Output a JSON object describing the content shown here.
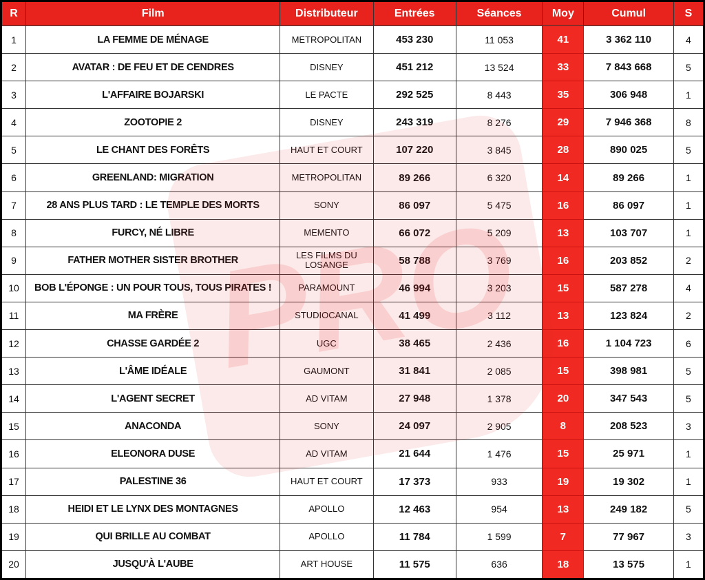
{
  "table": {
    "header": [
      "R",
      "Film",
      "Distributeur",
      "Entrées",
      "Séances",
      "Moy",
      "Cumul",
      "S"
    ],
    "rows": [
      [
        "1",
        "LA FEMME DE MÉNAGE",
        "METROPOLITAN",
        "453 230",
        "11 053",
        "41",
        "3 362 110",
        "4"
      ],
      [
        "2",
        "AVATAR : DE FEU ET DE CENDRES",
        "DISNEY",
        "451 212",
        "13 524",
        "33",
        "7 843 668",
        "5"
      ],
      [
        "3",
        "L'AFFAIRE BOJARSKI",
        "LE PACTE",
        "292 525",
        "8 443",
        "35",
        "306 948",
        "1"
      ],
      [
        "4",
        "ZOOTOPIE 2",
        "DISNEY",
        "243 319",
        "8 276",
        "29",
        "7 946 368",
        "8"
      ],
      [
        "5",
        "LE CHANT DES FORÊTS",
        "HAUT ET COURT",
        "107 220",
        "3 845",
        "28",
        "890 025",
        "5"
      ],
      [
        "6",
        "GREENLAND: MIGRATION",
        "METROPOLITAN",
        "89 266",
        "6 320",
        "14",
        "89 266",
        "1"
      ],
      [
        "7",
        "28 ANS PLUS TARD : LE TEMPLE DES MORTS",
        "SONY",
        "86 097",
        "5 475",
        "16",
        "86 097",
        "1"
      ],
      [
        "8",
        "FURCY, NÉ LIBRE",
        "MEMENTO",
        "66 072",
        "5 209",
        "13",
        "103 707",
        "1"
      ],
      [
        "9",
        "FATHER MOTHER SISTER BROTHER",
        "LES FILMS DU LOSANGE",
        "58 788",
        "3 769",
        "16",
        "203 852",
        "2"
      ],
      [
        "10",
        "BOB L'ÉPONGE : UN POUR TOUS, TOUS PIRATES !",
        "PARAMOUNT",
        "46 994",
        "3 203",
        "15",
        "587 278",
        "4"
      ],
      [
        "11",
        "MA FRÈRE",
        "STUDIOCANAL",
        "41 499",
        "3 112",
        "13",
        "123 824",
        "2"
      ],
      [
        "12",
        "CHASSE GARDÉE 2",
        "UGC",
        "38 465",
        "2 436",
        "16",
        "1 104 723",
        "6"
      ],
      [
        "13",
        "L'ÂME IDÉALE",
        "GAUMONT",
        "31 841",
        "2 085",
        "15",
        "398 981",
        "5"
      ],
      [
        "14",
        "L'AGENT SECRET",
        "AD VITAM",
        "27 948",
        "1 378",
        "20",
        "347 543",
        "5"
      ],
      [
        "15",
        "ANACONDA",
        "SONY",
        "24 097",
        "2 905",
        "8",
        "208 523",
        "3"
      ],
      [
        "16",
        "ELEONORA DUSE",
        "AD VITAM",
        "21 644",
        "1 476",
        "15",
        "25 971",
        "1"
      ],
      [
        "17",
        "PALESTINE 36",
        "HAUT ET COURT",
        "17 373",
        "933",
        "19",
        "19 302",
        "1"
      ],
      [
        "18",
        "HEIDI ET LE LYNX DES MONTAGNES",
        "APOLLO",
        "12 463",
        "954",
        "13",
        "249 182",
        "5"
      ],
      [
        "19",
        "QUI BRILLE AU COMBAT",
        "APOLLO",
        "11 784",
        "1 599",
        "7",
        "77 967",
        "3"
      ],
      [
        "20",
        "JUSQU'À L'AUBE",
        "ART HOUSE",
        "11 575",
        "636",
        "18",
        "13 575",
        "1"
      ]
    ]
  },
  "watermark": "PRO"
}
